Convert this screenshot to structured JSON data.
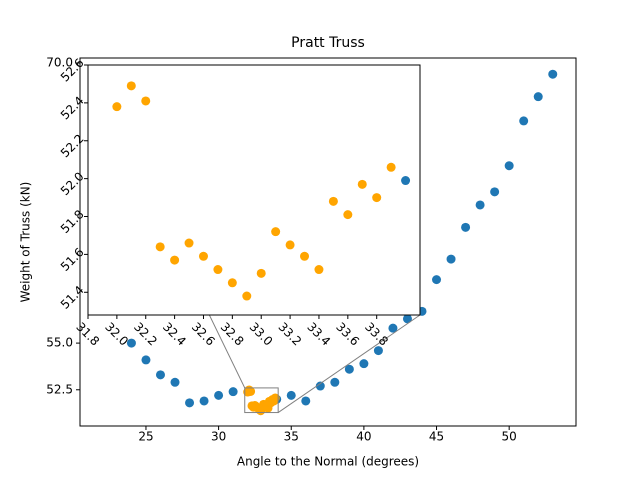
{
  "chart_data": [
    {
      "type": "scatter",
      "title": "Pratt Truss",
      "x_label": "Angle to the Normal (degrees)",
      "y_label": "Weight of Truss (kN)",
      "xlim": [
        20.46,
        54.6
      ],
      "ylim": [
        50.56,
        70.27
      ],
      "xticks": [
        25,
        30,
        35,
        40,
        45,
        50
      ],
      "yticks": [
        52.5,
        {
          "value": 55,
          "label": "55.0"
        },
        {
          "value": 70,
          "label": "70.0"
        }
      ],
      "series": [
        {
          "color": "#1f77b4",
          "x": [
            24,
            25,
            26,
            27,
            28,
            29,
            30,
            31,
            34,
            35,
            36,
            37,
            38,
            39,
            40,
            41,
            42,
            43,
            44,
            45,
            46,
            47,
            48,
            49,
            50,
            51,
            52,
            53
          ],
          "values": [
            55.0,
            54.1,
            53.3,
            52.9,
            51.8,
            51.9,
            52.2,
            52.4,
            51.99,
            52.2,
            51.9,
            52.7,
            52.9,
            53.6,
            53.9,
            54.6,
            55.8,
            56.3,
            56.7,
            58.4,
            59.5,
            61.2,
            62.4,
            63.1,
            64.5,
            66.9,
            68.2,
            69.4
          ]
        },
        {
          "color": "#ffa500",
          "x": [
            32.0,
            32.1,
            32.2,
            32.3,
            32.4,
            32.5,
            32.6,
            32.7,
            32.8,
            32.9,
            33.0,
            33.1,
            33.2,
            33.3,
            33.4,
            33.5,
            33.6,
            33.7,
            33.8,
            33.9
          ],
          "values": [
            52.38,
            52.49,
            52.41,
            51.64,
            51.57,
            51.66,
            51.59,
            51.52,
            51.45,
            51.38,
            51.5,
            51.72,
            51.65,
            51.59,
            51.52,
            51.88,
            51.81,
            51.97,
            51.9,
            52.06
          ]
        }
      ]
    },
    {
      "type": "scatter",
      "xlim": [
        31.8,
        34.1
      ],
      "ylim": [
        51.28,
        52.6
      ],
      "xticks": [
        31.8,
        {
          "value": 32,
          "label": "32.0"
        },
        32.2,
        32.4,
        32.6,
        32.8,
        {
          "value": 33,
          "label": "33.0"
        },
        33.2,
        33.4,
        33.6,
        33.8
      ],
      "yticks": [
        51.4,
        51.6,
        51.8,
        {
          "value": 52,
          "label": "52.0"
        },
        52.2,
        52.4,
        52.6
      ]
    }
  ]
}
